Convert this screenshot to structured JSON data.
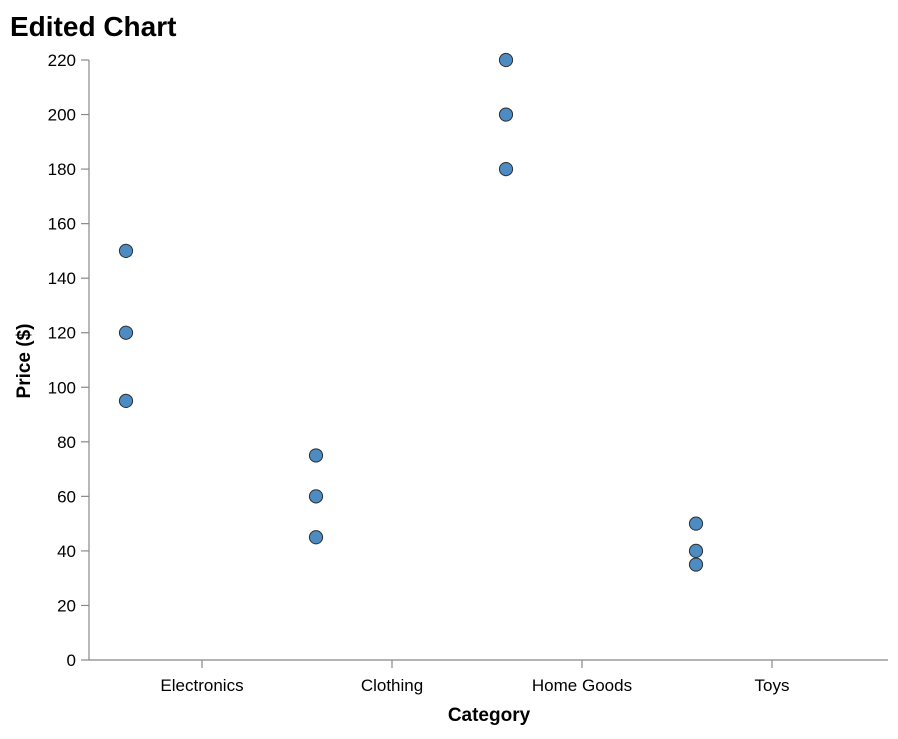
{
  "chart_data": {
    "type": "scatter",
    "title": "Edited Chart",
    "xlabel": "Category",
    "ylabel": "Price ($)",
    "categories": [
      "Electronics",
      "Clothing",
      "Home Goods",
      "Toys"
    ],
    "ylim": [
      0,
      220
    ],
    "yticks": [
      0,
      20,
      40,
      60,
      80,
      100,
      120,
      140,
      160,
      180,
      200,
      220
    ],
    "grid": false,
    "point_color": "#4c8cc2",
    "points": [
      {
        "category": "Electronics",
        "y": 150
      },
      {
        "category": "Electronics",
        "y": 120
      },
      {
        "category": "Electronics",
        "y": 95
      },
      {
        "category": "Clothing",
        "y": 75
      },
      {
        "category": "Clothing",
        "y": 60
      },
      {
        "category": "Clothing",
        "y": 45
      },
      {
        "category": "Home Goods",
        "y": 220
      },
      {
        "category": "Home Goods",
        "y": 200
      },
      {
        "category": "Home Goods",
        "y": 180
      },
      {
        "category": "Toys",
        "y": 50
      },
      {
        "category": "Toys",
        "y": 40
      },
      {
        "category": "Toys",
        "y": 35
      }
    ]
  }
}
